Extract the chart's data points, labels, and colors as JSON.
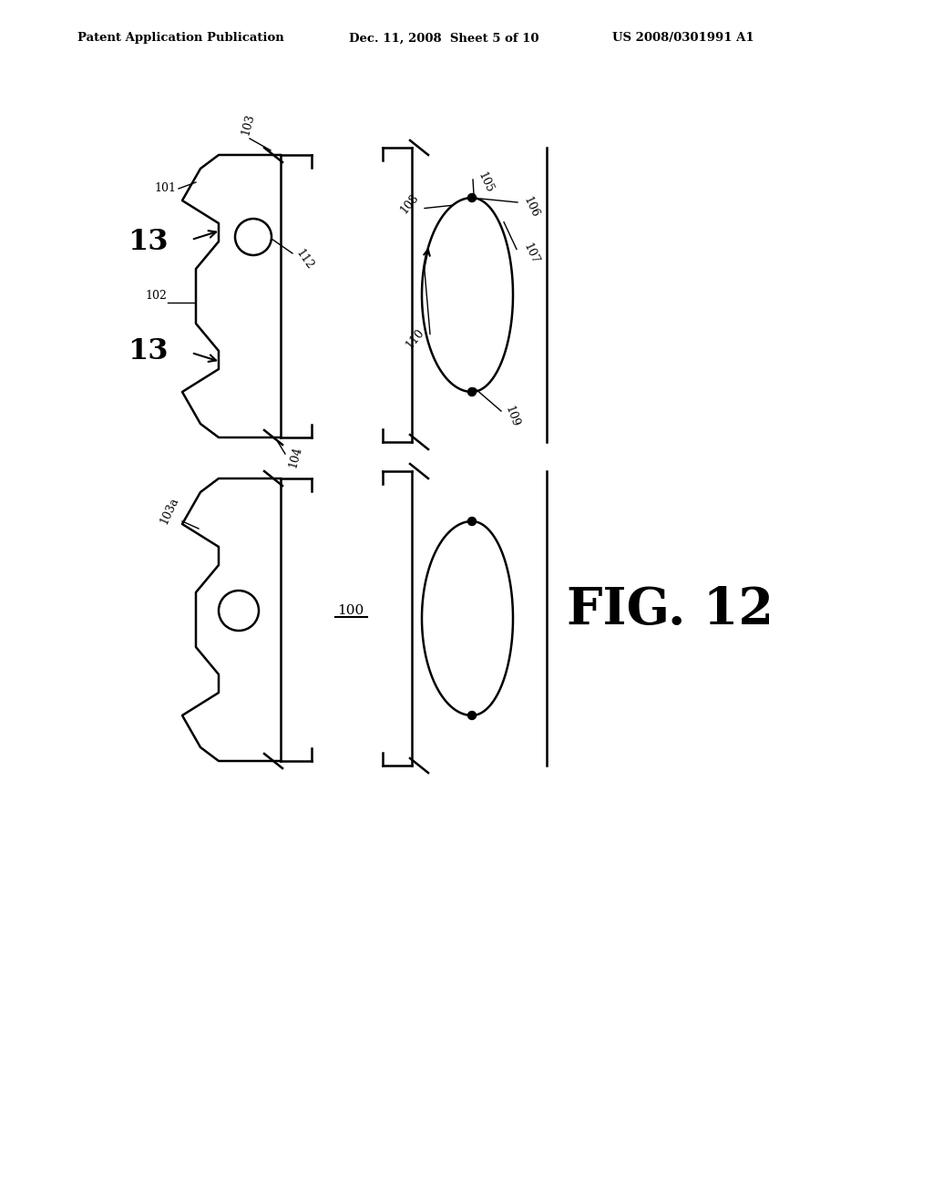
{
  "bg_color": "#ffffff",
  "header_left": "Patent Application Publication",
  "header_center": "Dec. 11, 2008  Sheet 5 of 10",
  "header_right": "US 2008/0301991 A1",
  "fig_label": "FIG. 12",
  "line_color": "#000000",
  "lw": 1.8,
  "lw_thin": 1.0
}
